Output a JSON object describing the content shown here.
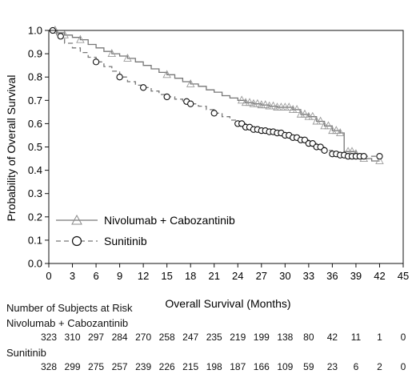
{
  "chart_data": {
    "type": "line",
    "title": "",
    "xlabel": "Overall Survival (Months)",
    "ylabel": "Probability of Overall Survival",
    "xlim": [
      0,
      45
    ],
    "ylim": [
      0,
      1.0
    ],
    "xticks": [
      0,
      3,
      6,
      9,
      12,
      15,
      18,
      21,
      24,
      27,
      30,
      33,
      36,
      39,
      42,
      45
    ],
    "yticks": [
      0.0,
      0.1,
      0.2,
      0.3,
      0.4,
      0.5,
      0.6,
      0.7,
      0.8,
      0.9,
      1.0
    ],
    "ytick_labels": [
      "0.0",
      "0.1",
      "0.2",
      "0.3",
      "0.4",
      "0.5",
      "0.6",
      "0.7",
      "0.8",
      "0.9",
      "1.0"
    ],
    "grid": false,
    "legend_position": "lower-left",
    "series": [
      {
        "name": "Nivolumab + Cabozantinib",
        "color": "#777777",
        "dash": "solid",
        "marker": "triangle",
        "x": [
          0,
          1,
          2,
          3,
          4,
          5,
          6,
          7,
          8,
          9,
          10,
          11,
          12,
          13,
          14,
          15,
          16,
          17,
          18,
          19,
          20,
          21,
          22,
          23,
          24,
          25,
          26,
          27,
          28,
          29,
          30,
          31,
          32,
          33,
          34,
          35,
          36,
          37,
          37.5,
          38,
          39,
          40,
          41,
          42
        ],
        "y": [
          1.0,
          0.99,
          0.98,
          0.97,
          0.96,
          0.94,
          0.925,
          0.91,
          0.9,
          0.89,
          0.88,
          0.865,
          0.85,
          0.835,
          0.82,
          0.81,
          0.795,
          0.78,
          0.77,
          0.76,
          0.745,
          0.735,
          0.72,
          0.71,
          0.7,
          0.69,
          0.685,
          0.68,
          0.675,
          0.67,
          0.67,
          0.66,
          0.64,
          0.63,
          0.61,
          0.59,
          0.57,
          0.56,
          0.48,
          0.48,
          0.47,
          0.45,
          0.44,
          0.44
        ],
        "censor_x": [
          0.8,
          2,
          4,
          8,
          10,
          15,
          18,
          24.5,
          25,
          25.5,
          26,
          26.5,
          27,
          27.5,
          28,
          28.5,
          29,
          29.5,
          30,
          30.5,
          31,
          31.5,
          32,
          32.5,
          33,
          33.5,
          34,
          34.5,
          35,
          35.5,
          36,
          36.5,
          37,
          38,
          38.5,
          39,
          40,
          42
        ]
      },
      {
        "name": "Sunitinib",
        "color": "#777777",
        "dash": "dashed",
        "marker": "circle",
        "x": [
          0,
          1,
          2,
          3,
          4,
          5,
          6,
          7,
          8,
          9,
          10,
          11,
          12,
          13,
          14,
          15,
          16,
          17,
          18,
          19,
          20,
          21,
          22,
          23,
          24,
          25,
          26,
          27,
          28,
          29,
          30,
          31,
          32,
          33,
          34,
          35,
          36,
          37,
          38,
          39,
          40,
          41,
          42
        ],
        "y": [
          1.0,
          0.975,
          0.945,
          0.925,
          0.905,
          0.885,
          0.865,
          0.845,
          0.825,
          0.8,
          0.78,
          0.765,
          0.755,
          0.74,
          0.725,
          0.715,
          0.705,
          0.695,
          0.685,
          0.675,
          0.66,
          0.645,
          0.63,
          0.615,
          0.6,
          0.585,
          0.575,
          0.57,
          0.565,
          0.56,
          0.55,
          0.54,
          0.53,
          0.515,
          0.5,
          0.485,
          0.47,
          0.465,
          0.46,
          0.46,
          0.46,
          0.46,
          0.46
        ],
        "censor_x": [
          0.5,
          1.5,
          6,
          9,
          12,
          15,
          17.5,
          18,
          21,
          24,
          24.5,
          25,
          25.5,
          26,
          26.5,
          27,
          27.5,
          28,
          28.5,
          29,
          29.5,
          30,
          30.5,
          31,
          31.5,
          32,
          32.5,
          33,
          33.5,
          34,
          34.5,
          35,
          36,
          36.5,
          37,
          37.5,
          38,
          38.5,
          39,
          39.5,
          40,
          42
        ]
      }
    ]
  },
  "risk_table": {
    "title": "Number of Subjects at Risk",
    "time_points": [
      0,
      3,
      6,
      9,
      12,
      15,
      18,
      21,
      24,
      27,
      30,
      33,
      36,
      39,
      42,
      45
    ],
    "rows": [
      {
        "name": "Nivolumab + Cabozantinib",
        "values": [
          "323",
          "310",
          "297",
          "284",
          "270",
          "258",
          "247",
          "235",
          "219",
          "199",
          "138",
          "80",
          "42",
          "11",
          "1",
          "0"
        ]
      },
      {
        "name": "Sunitinib",
        "values": [
          "328",
          "299",
          "275",
          "257",
          "239",
          "226",
          "215",
          "198",
          "187",
          "166",
          "109",
          "59",
          "23",
          "6",
          "2",
          "0"
        ]
      }
    ]
  }
}
